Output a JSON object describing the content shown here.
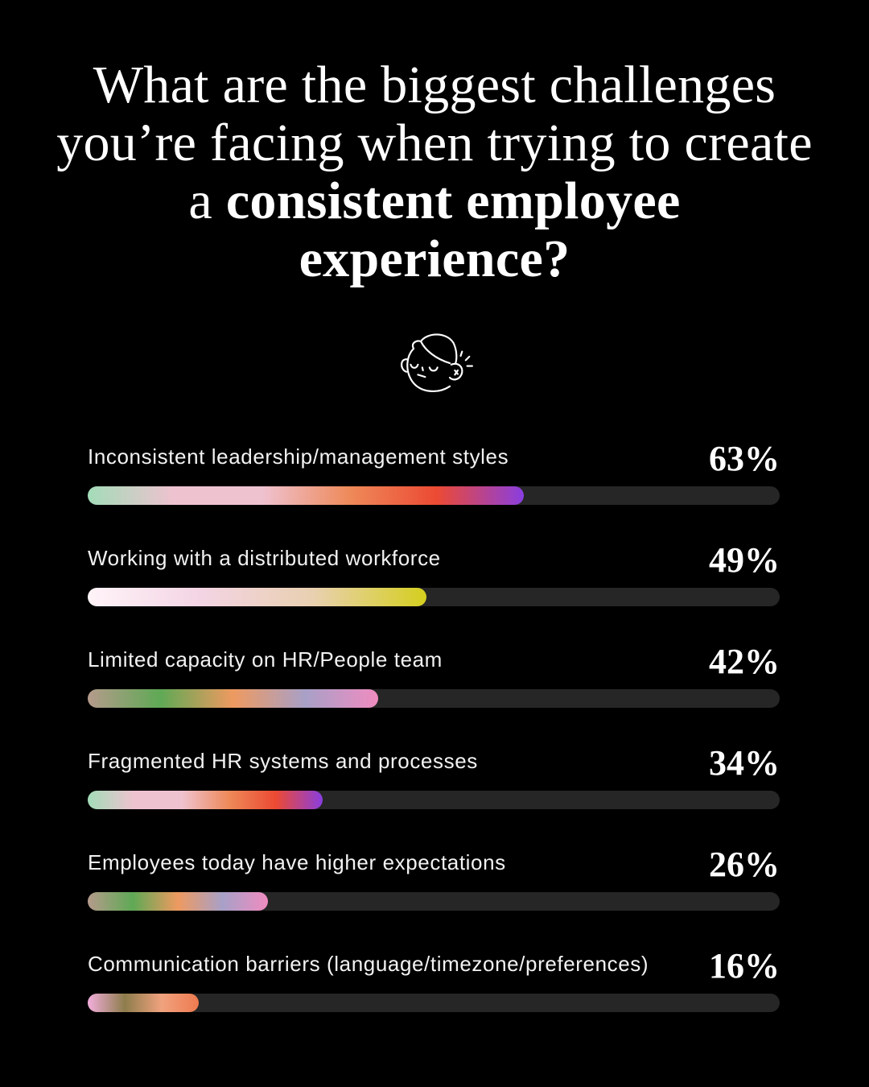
{
  "title": {
    "regular": "What are the biggest challenges you’re facing when trying to create a ",
    "bold": "consistent employee experience?"
  },
  "icon": "annoyed-face-icon",
  "chart_data": {
    "type": "bar",
    "orientation": "horizontal",
    "title": "What are the biggest challenges you’re facing when trying to create a consistent employee experience?",
    "unit": "%",
    "xlim": [
      0,
      100
    ],
    "grid": false,
    "categories": [
      "Inconsistent leadership/management styles",
      "Working with a distributed workforce",
      "Limited capacity on HR/People team",
      "Fragmented HR systems and processes",
      "Employees today have higher expectations",
      "Communication barriers (language/timezone/preferences)"
    ],
    "values": [
      63,
      49,
      42,
      34,
      26,
      16
    ],
    "labels": [
      "63%",
      "49%",
      "42%",
      "34%",
      "26%",
      "16%"
    ],
    "gradients": [
      [
        "#a3dcb8",
        "#efc2d0",
        "#efc2d0",
        "#ee8a5a",
        "#ec4a33",
        "#8a3ee0"
      ],
      [
        "#fff4f8",
        "#f3d4e4",
        "#e9d0b0",
        "#d4cf1e"
      ],
      [
        "#b59b8c",
        "#5fa955",
        "#ee9a60",
        "#a8a0c8",
        "#f08cc0"
      ],
      [
        "#a3dcb8",
        "#efc2d0",
        "#efc2d0",
        "#ee8a5a",
        "#ec4a33",
        "#8a3ee0"
      ],
      [
        "#b59b8c",
        "#5fa955",
        "#ee9a60",
        "#a8a0c8",
        "#f08cc0"
      ],
      [
        "#f2aedc",
        "#8e7d4c",
        "#f0a27e",
        "#ee7a50"
      ]
    ]
  },
  "colors": {
    "background": "#000000",
    "track": "#262626",
    "text": "#ffffff"
  }
}
